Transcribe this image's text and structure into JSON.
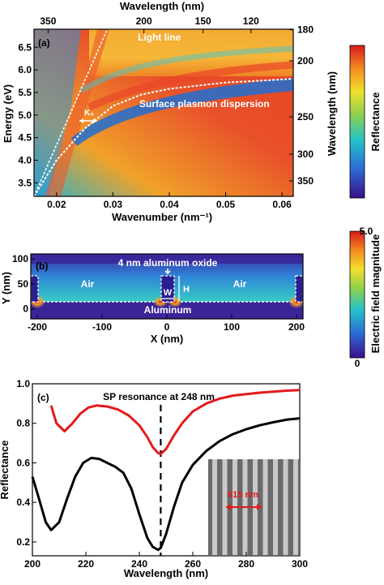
{
  "chart_data": [
    {
      "panel": "(a)",
      "type": "heatmap",
      "xlabel": "Wavenumber (nm⁻¹)",
      "ylabel": "Energy (eV)",
      "top_axis_label": "Wavelength (nm)",
      "right_axis_label": "Wavelength (nm)",
      "xlim": [
        0.016,
        0.062
      ],
      "ylim": [
        3.2,
        6.9
      ],
      "x_ticks": [
        "0.02",
        "0.03",
        "0.04",
        "0.05",
        "0.06"
      ],
      "y_ticks": [
        "3.5",
        "4.0",
        "4.5",
        "5.0",
        "5.5",
        "6.0",
        "6.5"
      ],
      "top_ticks": [
        "350",
        "200",
        "150",
        "120"
      ],
      "right_ticks": [
        "180",
        "200",
        "250",
        "300",
        "350"
      ],
      "colorbar": {
        "label": "Reflectance",
        "low_color": "#3a0f8a",
        "high_color": "#d7191c"
      },
      "annotations": [
        "Light line",
        "Surface plasmon dispersion",
        "K₀"
      ],
      "light_line": [
        [
          0.016,
          3.2
        ],
        [
          0.029,
          6.9
        ]
      ],
      "sp_dispersion": [
        [
          0.016,
          3.2
        ],
        [
          0.02,
          4.0
        ],
        [
          0.025,
          4.7
        ],
        [
          0.03,
          5.2
        ],
        [
          0.035,
          5.45
        ],
        [
          0.04,
          5.58
        ],
        [
          0.05,
          5.72
        ],
        [
          0.062,
          5.8
        ]
      ]
    },
    {
      "panel": "(b)",
      "type": "heatmap",
      "xlabel": "X (nm)",
      "ylabel": "Y (nm)",
      "xlim": [
        -210,
        210
      ],
      "ylim": [
        -20,
        110
      ],
      "x_ticks": [
        "-200",
        "-100",
        "0",
        "100",
        "200"
      ],
      "y_ticks": [
        "0",
        "50",
        "100"
      ],
      "colorbar": {
        "label": "Electric field magnitude",
        "min": "0",
        "max": "5.0"
      },
      "annotations": [
        "4 nm aluminum oxide",
        "Air",
        "Air",
        "Aluminum",
        "W",
        "H"
      ]
    },
    {
      "panel": "(c)",
      "type": "line",
      "xlabel": "Wavelength (nm)",
      "ylabel": "Reflectance",
      "xlim": [
        200,
        300
      ],
      "ylim": [
        0.13,
        1.0
      ],
      "x_ticks": [
        "200",
        "220",
        "240",
        "260",
        "280",
        "300"
      ],
      "y_ticks": [
        "0.2",
        "0.4",
        "0.6",
        "0.8",
        "1.0"
      ],
      "annotation": "SP resonance at 248 nm",
      "resonance_x": 248,
      "inset_label": "615 nm",
      "series": [
        {
          "color": "#e41a1c",
          "x": [
            207,
            209,
            212,
            215,
            218,
            221,
            224,
            228,
            232,
            236,
            240,
            243,
            245,
            247,
            248,
            250,
            253,
            256,
            260,
            265,
            270,
            275,
            280,
            285,
            290,
            295,
            300
          ],
          "y": [
            0.89,
            0.8,
            0.76,
            0.8,
            0.85,
            0.88,
            0.89,
            0.885,
            0.87,
            0.84,
            0.79,
            0.73,
            0.68,
            0.65,
            0.645,
            0.67,
            0.74,
            0.8,
            0.86,
            0.9,
            0.925,
            0.94,
            0.948,
            0.955,
            0.96,
            0.965,
            0.968
          ]
        },
        {
          "color": "#000000",
          "x": [
            200,
            202,
            205,
            207,
            210,
            213,
            216,
            219,
            222,
            225,
            228,
            231,
            234,
            237,
            240,
            243,
            245,
            247,
            248,
            250,
            253,
            256,
            260,
            265,
            270,
            275,
            280,
            285,
            290,
            295,
            300
          ],
          "y": [
            0.53,
            0.44,
            0.3,
            0.26,
            0.3,
            0.42,
            0.53,
            0.6,
            0.625,
            0.62,
            0.6,
            0.58,
            0.55,
            0.47,
            0.34,
            0.22,
            0.175,
            0.16,
            0.17,
            0.24,
            0.38,
            0.5,
            0.59,
            0.66,
            0.71,
            0.745,
            0.77,
            0.79,
            0.805,
            0.818,
            0.825
          ]
        }
      ]
    }
  ]
}
